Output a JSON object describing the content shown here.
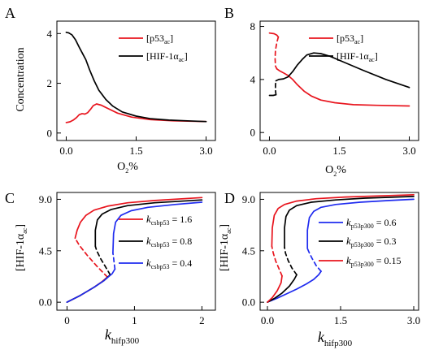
{
  "colors": {
    "red": "#e8141d",
    "black": "#000000",
    "blue": "#1f2bef"
  },
  "chart_data": [
    {
      "panel_label": "A",
      "type": "line",
      "ylabel": "Concentration",
      "xlabel_main": "O",
      "xlabel_sub": "2",
      "xlabel_tail": "%",
      "xlim": [
        -0.2,
        3.2
      ],
      "ylim": [
        -0.3,
        4.5
      ],
      "xticks": [
        0.0,
        1.5,
        3.0
      ],
      "xtick_labels": [
        "0.0",
        "1.5",
        "3.0"
      ],
      "yticks": [
        0,
        2,
        4
      ],
      "ytick_labels": [
        "0",
        "2",
        "4"
      ],
      "legend_position": "top-right",
      "series": [
        {
          "legend_main": "[p53",
          "legend_sub": "ac",
          "legend_tail": "]",
          "color": "#e8141d",
          "segments": [
            {
              "style": "solid",
              "x": [
                0.0,
                0.08,
                0.15,
                0.22,
                0.28,
                0.34,
                0.4,
                0.46,
                0.52,
                0.58,
                0.65,
                0.75,
                0.9,
                1.1,
                1.4,
                1.8,
                2.3,
                3.0
              ],
              "y": [
                0.42,
                0.45,
                0.52,
                0.62,
                0.74,
                0.78,
                0.76,
                0.82,
                0.95,
                1.1,
                1.17,
                1.12,
                0.98,
                0.8,
                0.64,
                0.54,
                0.49,
                0.46
              ]
            }
          ]
        },
        {
          "legend_main": "[HIF-1α",
          "legend_sub": "ac",
          "legend_tail": "]",
          "color": "#000000",
          "segments": [
            {
              "style": "solid",
              "x": [
                0.0,
                0.05,
                0.12,
                0.2,
                0.28,
                0.35,
                0.42,
                0.5,
                0.6,
                0.7,
                0.85,
                1.0,
                1.2,
                1.5,
                1.8,
                2.2,
                2.6,
                3.0
              ],
              "y": [
                4.05,
                4.03,
                3.95,
                3.75,
                3.45,
                3.2,
                2.95,
                2.55,
                2.1,
                1.72,
                1.35,
                1.08,
                0.85,
                0.68,
                0.58,
                0.52,
                0.49,
                0.46
              ]
            }
          ]
        }
      ]
    },
    {
      "panel_label": "B",
      "type": "line",
      "ylabel": "",
      "xlabel_main": "O",
      "xlabel_sub": "2",
      "xlabel_tail": "%",
      "xlim": [
        -0.2,
        3.2
      ],
      "ylim": [
        -0.6,
        8.4
      ],
      "xticks": [
        0.0,
        1.5,
        3.0
      ],
      "xtick_labels": [
        "0.0",
        "1.5",
        "3.0"
      ],
      "yticks": [
        0,
        4,
        8
      ],
      "ytick_labels": [
        "0",
        "4",
        "8"
      ],
      "legend_position": "top-right",
      "series": [
        {
          "legend_main": "[p53",
          "legend_sub": "ac",
          "legend_tail": "]",
          "color": "#e8141d",
          "segments": [
            {
              "style": "solid",
              "x": [
                0.0,
                0.1,
                0.16,
                0.19
              ],
              "y": [
                7.5,
                7.45,
                7.35,
                7.2
              ]
            },
            {
              "style": "dashed",
              "x": [
                0.19,
                0.16,
                0.13,
                0.12,
                0.13,
                0.16
              ],
              "y": [
                7.2,
                6.8,
                6.2,
                5.6,
                5.0,
                4.8
              ]
            },
            {
              "style": "solid",
              "x": [
                0.16,
                0.22,
                0.3,
                0.4,
                0.5,
                0.6,
                0.75,
                0.9,
                1.1,
                1.4,
                1.8,
                2.3,
                3.0
              ],
              "y": [
                4.8,
                4.65,
                4.5,
                4.3,
                4.0,
                3.6,
                3.1,
                2.75,
                2.45,
                2.25,
                2.1,
                2.05,
                2.0
              ]
            }
          ]
        },
        {
          "legend_main": "[HIF-1α",
          "legend_sub": "ac",
          "legend_tail": "]",
          "color": "#000000",
          "segments": [
            {
              "style": "solid",
              "x": [
                0.0,
                0.08,
                0.14
              ],
              "y": [
                2.8,
                2.8,
                2.85
              ]
            },
            {
              "style": "dashed",
              "x": [
                0.14,
                0.13,
                0.13,
                0.14
              ],
              "y": [
                2.85,
                3.2,
                3.6,
                3.9
              ]
            },
            {
              "style": "solid",
              "x": [
                0.14,
                0.2,
                0.3,
                0.4,
                0.5,
                0.6,
                0.7,
                0.8,
                0.95,
                1.1,
                1.3,
                1.6,
                2.0,
                2.5,
                3.0
              ],
              "y": [
                3.9,
                4.0,
                4.05,
                4.2,
                4.6,
                5.1,
                5.5,
                5.85,
                6.0,
                5.95,
                5.75,
                5.3,
                4.7,
                4.0,
                3.4
              ]
            }
          ]
        }
      ]
    },
    {
      "panel_label": "C",
      "type": "line",
      "ylabel_main": "[HIF-1α",
      "ylabel_sub": "ac",
      "ylabel_tail": "]",
      "xlabel_main": "k",
      "xlabel_sub": "hifp300",
      "xlim": [
        -0.15,
        2.2
      ],
      "ylim": [
        -0.7,
        9.6
      ],
      "xticks": [
        0,
        1,
        2
      ],
      "xtick_labels": [
        "0",
        "1",
        "2"
      ],
      "yticks": [
        0.0,
        4.5,
        9.0
      ],
      "ytick_labels": [
        "0.0",
        "4.5",
        "9.0"
      ],
      "legend_position": "center-right",
      "series": [
        {
          "legend_main": "k",
          "legend_sub": "csbp53",
          "legend_tail": " = 1.6",
          "color": "#e8141d",
          "segments": [
            {
              "style": "solid",
              "x": [
                0.0,
                0.2,
                0.4,
                0.52,
                0.6
              ],
              "y": [
                0.0,
                0.6,
                1.3,
                1.8,
                2.2
              ]
            },
            {
              "style": "dashed",
              "x": [
                0.6,
                0.45,
                0.3,
                0.18,
                0.12
              ],
              "y": [
                2.2,
                3.1,
                4.1,
                5.0,
                5.6
              ]
            },
            {
              "style": "solid",
              "x": [
                0.12,
                0.15,
                0.2,
                0.28,
                0.4,
                0.6,
                0.9,
                1.3,
                2.0
              ],
              "y": [
                5.6,
                6.3,
                7.0,
                7.6,
                8.05,
                8.4,
                8.7,
                8.9,
                9.15
              ]
            }
          ]
        },
        {
          "legend_main": "k",
          "legend_sub": "csbp53",
          "legend_tail": " = 0.8",
          "color": "#000000",
          "segments": [
            {
              "style": "solid",
              "x": [
                0.0,
                0.2,
                0.4,
                0.55,
                0.64
              ],
              "y": [
                0.0,
                0.6,
                1.3,
                1.9,
                2.4
              ]
            },
            {
              "style": "dashed",
              "x": [
                0.64,
                0.58,
                0.5,
                0.44,
                0.42
              ],
              "y": [
                2.4,
                3.0,
                3.8,
                4.5,
                4.9
              ]
            },
            {
              "style": "solid",
              "x": [
                0.42,
                0.42,
                0.45,
                0.52,
                0.65,
                0.9,
                1.3,
                2.0
              ],
              "y": [
                4.9,
                6.3,
                7.2,
                7.7,
                8.1,
                8.45,
                8.7,
                8.95
              ]
            }
          ]
        },
        {
          "legend_main": "k",
          "legend_sub": "csbp53",
          "legend_tail": " = 0.4",
          "color": "#1f2bef",
          "segments": [
            {
              "style": "solid",
              "x": [
                0.0,
                0.2,
                0.4,
                0.55,
                0.67,
                0.71
              ],
              "y": [
                0.0,
                0.6,
                1.3,
                1.9,
                2.5,
                2.9
              ]
            },
            {
              "style": "dashed",
              "x": [
                0.71,
                0.7,
                0.69,
                0.68
              ],
              "y": [
                2.9,
                3.4,
                3.9,
                4.3
              ]
            },
            {
              "style": "solid",
              "x": [
                0.68,
                0.69,
                0.72,
                0.8,
                0.95,
                1.2,
                1.6,
                2.0
              ],
              "y": [
                4.3,
                6.0,
                7.0,
                7.6,
                8.0,
                8.3,
                8.55,
                8.75
              ]
            }
          ]
        }
      ]
    },
    {
      "panel_label": "D",
      "type": "line",
      "ylabel_main": "[HIF-1α",
      "ylabel_sub": "ac",
      "ylabel_tail": "]",
      "xlabel_main": "k",
      "xlabel_sub": "hifp300",
      "xlim": [
        -0.15,
        3.1
      ],
      "ylim": [
        -0.7,
        9.6
      ],
      "xticks": [
        0.0,
        1.5,
        3.0
      ],
      "xtick_labels": [
        "0.0",
        "1.5",
        "3.0"
      ],
      "yticks": [
        0.0,
        4.5,
        9.0
      ],
      "ytick_labels": [
        "0.0",
        "4.5",
        "9.0"
      ],
      "legend_position": "center-right",
      "series": [
        {
          "legend_main": "k",
          "legend_sub": "p53p300",
          "legend_tail": " = 0.6",
          "color": "#1f2bef",
          "segments": [
            {
              "style": "solid",
              "x": [
                0.0,
                0.2,
                0.4,
                0.6,
                0.8,
                0.95,
                1.05,
                1.1
              ],
              "y": [
                0.0,
                0.35,
                0.75,
                1.15,
                1.6,
                2.0,
                2.4,
                2.7
              ]
            },
            {
              "style": "dashed",
              "x": [
                1.1,
                1.0,
                0.92,
                0.86,
                0.82
              ],
              "y": [
                2.7,
                3.2,
                3.8,
                4.3,
                4.7
              ]
            },
            {
              "style": "solid",
              "x": [
                0.82,
                0.82,
                0.86,
                0.95,
                1.1,
                1.4,
                1.9,
                2.5,
                3.0
              ],
              "y": [
                4.7,
                6.3,
                7.4,
                7.95,
                8.3,
                8.55,
                8.75,
                8.9,
                9.0
              ]
            }
          ]
        },
        {
          "legend_main": "k",
          "legend_sub": "p53p300",
          "legend_tail": " = 0.3",
          "color": "#000000",
          "segments": [
            {
              "style": "solid",
              "x": [
                0.0,
                0.15,
                0.3,
                0.45,
                0.55,
                0.6
              ],
              "y": [
                0.0,
                0.35,
                0.8,
                1.4,
                2.0,
                2.4
              ]
            },
            {
              "style": "dashed",
              "x": [
                0.6,
                0.5,
                0.42,
                0.37,
                0.35
              ],
              "y": [
                2.4,
                3.0,
                3.7,
                4.3,
                4.8
              ]
            },
            {
              "style": "solid",
              "x": [
                0.35,
                0.35,
                0.38,
                0.45,
                0.6,
                0.9,
                1.4,
                2.0,
                3.0
              ],
              "y": [
                4.8,
                6.5,
                7.5,
                8.05,
                8.45,
                8.75,
                8.95,
                9.1,
                9.25
              ]
            }
          ]
        },
        {
          "legend_main": "k",
          "legend_sub": "p53p300",
          "legend_tail": " = 0.15",
          "color": "#e8141d",
          "segments": [
            {
              "style": "solid",
              "x": [
                0.0,
                0.1,
                0.2,
                0.28,
                0.3
              ],
              "y": [
                0.0,
                0.4,
                1.0,
                1.7,
                2.3
              ]
            },
            {
              "style": "dashed",
              "x": [
                0.3,
                0.24,
                0.17,
                0.12,
                0.09
              ],
              "y": [
                2.3,
                2.9,
                3.6,
                4.3,
                4.9
              ]
            },
            {
              "style": "solid",
              "x": [
                0.09,
                0.1,
                0.14,
                0.22,
                0.35,
                0.6,
                1.0,
                1.6,
                2.3,
                3.0
              ],
              "y": [
                4.9,
                6.5,
                7.6,
                8.2,
                8.55,
                8.85,
                9.05,
                9.2,
                9.3,
                9.4
              ]
            }
          ]
        }
      ]
    }
  ]
}
